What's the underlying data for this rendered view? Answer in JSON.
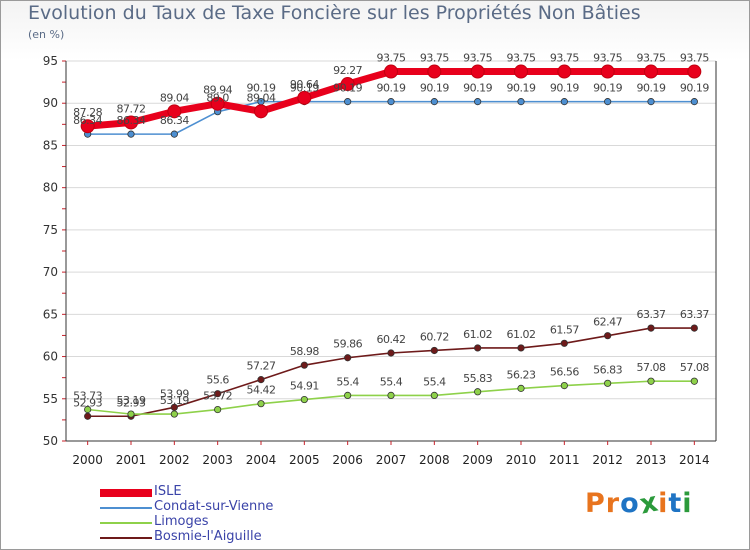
{
  "title": "Evolution du Taux de Taxe Foncière sur les Propriétés Non Bâties",
  "subtitle": "(en %)",
  "logo": {
    "letters": [
      "P",
      "r",
      "o",
      "x",
      "i",
      "t",
      "i"
    ],
    "colors": [
      "#e8741e",
      "#e8741e",
      "#1f74c4",
      "#2b9a3b",
      "#e8741e",
      "#1f74c4",
      "#2b9a3b"
    ]
  },
  "chart_data": {
    "type": "line",
    "x": [
      "2000",
      "2001",
      "2002",
      "2003",
      "2004",
      "2005",
      "2006",
      "2007",
      "2008",
      "2009",
      "2010",
      "2011",
      "2012",
      "2013",
      "2014"
    ],
    "ylim": [
      50,
      95
    ],
    "yticks": [
      "50",
      "55",
      "60",
      "65",
      "70",
      "75",
      "80",
      "85",
      "90",
      "95"
    ],
    "grid": "horizontal",
    "legend_position": "bottom-left",
    "series": [
      {
        "name": "ISLE",
        "color": "#e8001c",
        "values": [
          87.28,
          87.72,
          89.04,
          89.94,
          89.04,
          90.64,
          92.27,
          93.75,
          93.75,
          93.75,
          93.75,
          93.75,
          93.75,
          93.75,
          93.75
        ],
        "labels": [
          "87.28",
          "87.72",
          "89.04",
          "89.94",
          "89.04",
          "90.64",
          "92.27",
          "93.75",
          "93.75",
          "93.75",
          "93.75",
          "93.75",
          "93.75",
          "93.75",
          "93.75"
        ]
      },
      {
        "name": "Condat-sur-Vienne",
        "color": "#4d8fd1",
        "values": [
          86.34,
          86.34,
          86.34,
          89.0,
          90.19,
          90.19,
          90.19,
          90.19,
          90.19,
          90.19,
          90.19,
          90.19,
          90.19,
          90.19,
          90.19
        ],
        "labels": [
          "86.34",
          "86.34",
          "86.34",
          "89.0",
          "90.19",
          "90.19",
          "90.19",
          "90.19",
          "90.19",
          "90.19",
          "90.19",
          "90.19",
          "90.19",
          "90.19",
          "90.19"
        ]
      },
      {
        "name": "Limoges",
        "color": "#8ed14a",
        "values": [
          53.73,
          53.19,
          53.19,
          53.72,
          54.42,
          54.91,
          55.4,
          55.4,
          55.4,
          55.83,
          56.23,
          56.56,
          56.83,
          57.08,
          57.08
        ],
        "labels": [
          "53.73",
          "53.19",
          "53.19",
          "53.72",
          "54.42",
          "54.91",
          "55.4",
          "55.4",
          "55.4",
          "55.83",
          "56.23",
          "56.56",
          "56.83",
          "57.08",
          "57.08"
        ]
      },
      {
        "name": "Bosmie-l'Aiguille",
        "color": "#6e1a1a",
        "values": [
          52.93,
          52.93,
          53.99,
          55.6,
          57.27,
          58.98,
          59.86,
          60.42,
          60.72,
          61.02,
          61.02,
          61.57,
          62.47,
          63.37,
          63.37
        ],
        "labels": [
          "52.93",
          "52.93",
          "53.99",
          "55.6",
          "57.27",
          "58.98",
          "59.86",
          "60.42",
          "60.72",
          "61.02",
          "61.02",
          "61.57",
          "62.47",
          "63.37",
          "63.37"
        ]
      }
    ]
  }
}
